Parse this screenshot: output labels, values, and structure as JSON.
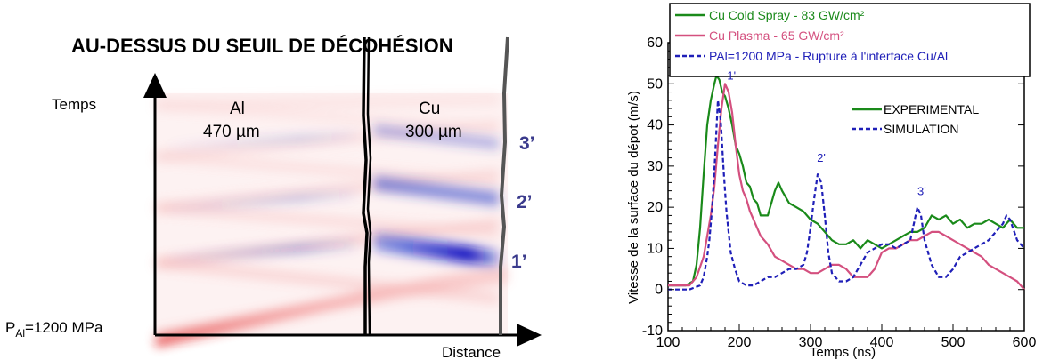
{
  "diagram": {
    "title": "AU-DESSUS DU SEUIL DE DÉCOHÉSION",
    "y_axis_label": "Temps",
    "x_axis_label": "Distance",
    "pressure_prefix": "P",
    "pressure_sub": "Al",
    "pressure_suffix": "=1200 MPa",
    "al_label": "Al",
    "al_thickness": "470 µm",
    "cu_label": "Cu",
    "cu_thickness": "300 µm",
    "echo_labels": [
      "3’",
      "2’",
      "1’"
    ]
  },
  "chart_data": {
    "type": "line",
    "title": "",
    "xlabel": "Temps (ns)",
    "ylabel": "Vitesse de la surface du dépot (m/s)",
    "xlim": [
      100,
      600
    ],
    "ylim": [
      -10,
      60
    ],
    "xticks": [
      100,
      200,
      300,
      400,
      500,
      600
    ],
    "yticks": [
      -10,
      0,
      10,
      20,
      30,
      40,
      50,
      60
    ],
    "grid": false,
    "legend_top": [
      {
        "label": "Cu Cold Spray - 83 GW/cm²",
        "color": "#1a8a1a",
        "style": "solid"
      },
      {
        "label": "Cu Plasma - 65 GW/cm²",
        "color": "#d4507f",
        "style": "solid"
      },
      {
        "label": "PAl=1200 MPa - Rupture à l'interface Cu/Al",
        "color": "#1f1fb8",
        "style": "dashed"
      }
    ],
    "legend_inner": [
      {
        "label": "EXPERIMENTAL",
        "color": "#1a8a1a",
        "style": "solid"
      },
      {
        "label": "SIMULATION",
        "color": "#1f1fb8",
        "style": "dashed"
      }
    ],
    "annotations": [
      {
        "text": "1'",
        "x": 183,
        "y": 51
      },
      {
        "text": "2'",
        "x": 309,
        "y": 31
      },
      {
        "text": "3'",
        "x": 450,
        "y": 23
      }
    ],
    "series": [
      {
        "name": "Cu Cold Spray - 83 GW/cm²",
        "color": "#1a8a1a",
        "style": "solid",
        "x": [
          100,
          115,
          125,
          135,
          140,
          145,
          150,
          155,
          160,
          165,
          168,
          172,
          176,
          180,
          185,
          190,
          195,
          200,
          205,
          210,
          215,
          220,
          225,
          230,
          240,
          250,
          255,
          260,
          270,
          280,
          290,
          300,
          310,
          320,
          330,
          340,
          350,
          360,
          370,
          380,
          390,
          400,
          410,
          420,
          430,
          440,
          450,
          460,
          470,
          480,
          490,
          500,
          510,
          520,
          530,
          540,
          550,
          560,
          570,
          580,
          590,
          600
        ],
        "y": [
          1,
          1,
          1,
          2,
          6,
          15,
          28,
          40,
          46,
          50,
          52,
          51,
          48,
          47,
          44,
          40,
          35,
          33,
          30,
          26,
          25,
          22,
          21,
          18,
          18,
          24,
          26,
          24,
          21,
          20,
          19,
          17,
          16,
          14,
          12,
          11,
          11,
          12,
          10,
          12,
          11,
          10,
          11,
          12,
          13,
          14,
          14,
          15,
          18,
          17,
          18,
          16,
          17,
          15,
          16,
          16,
          17,
          16,
          15,
          17,
          15,
          15
        ]
      },
      {
        "name": "Cu Plasma - 65 GW/cm²",
        "color": "#d4507f",
        "style": "solid",
        "x": [
          100,
          120,
          130,
          140,
          150,
          160,
          165,
          170,
          175,
          180,
          185,
          190,
          195,
          200,
          205,
          210,
          215,
          220,
          230,
          240,
          250,
          260,
          270,
          280,
          290,
          300,
          310,
          320,
          330,
          340,
          350,
          360,
          370,
          380,
          390,
          400,
          410,
          420,
          430,
          440,
          450,
          460,
          470,
          480,
          490,
          500,
          510,
          520,
          530,
          540,
          550,
          560,
          570,
          580,
          590,
          600
        ],
        "y": [
          1,
          1,
          1,
          3,
          8,
          18,
          25,
          35,
          44,
          50,
          48,
          43,
          35,
          28,
          24,
          22,
          19,
          17,
          13,
          11,
          8,
          7,
          6,
          5,
          5,
          4,
          4,
          5,
          6,
          6,
          5,
          3,
          3,
          3,
          5,
          9,
          10,
          10,
          11,
          12,
          12,
          13,
          14,
          14,
          13,
          12,
          11,
          10,
          9,
          8,
          6,
          5,
          4,
          3,
          2,
          0
        ]
      },
      {
        "name": "PAl=1200 MPa - Rupture à l'interface Cu/Al",
        "color": "#1f1fb8",
        "style": "dashed",
        "x": [
          100,
          130,
          145,
          150,
          155,
          158,
          162,
          166,
          170,
          174,
          178,
          182,
          188,
          194,
          200,
          210,
          220,
          230,
          240,
          250,
          260,
          270,
          280,
          290,
          295,
          300,
          305,
          310,
          315,
          320,
          325,
          330,
          340,
          350,
          360,
          370,
          380,
          390,
          400,
          410,
          420,
          430,
          440,
          445,
          450,
          455,
          460,
          470,
          480,
          490,
          500,
          510,
          520,
          530,
          540,
          550,
          560,
          570,
          575,
          580,
          590,
          600
        ],
        "y": [
          0,
          0,
          1,
          3,
          8,
          12,
          20,
          32,
          46,
          41,
          29,
          19,
          9,
          5,
          2,
          1,
          1,
          2,
          3,
          3,
          4,
          5,
          5,
          6,
          9,
          15,
          22,
          28,
          26,
          18,
          9,
          4,
          2,
          2,
          3,
          6,
          9,
          10,
          11,
          11,
          10,
          11,
          12,
          16,
          20,
          18,
          12,
          6,
          3,
          3,
          5,
          8,
          9,
          10,
          11,
          12,
          14,
          16,
          18,
          17,
          12,
          10
        ]
      }
    ]
  }
}
